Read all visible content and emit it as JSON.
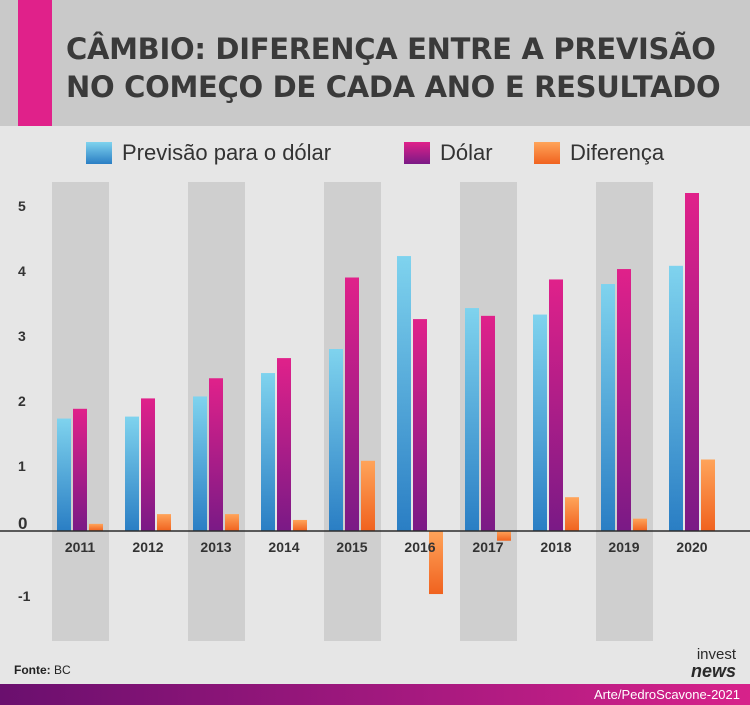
{
  "title_lines": [
    "CÂMBIO: DIFERENÇA ENTRE A PREVISÃO",
    "NO COMEÇO DE CADA ANO E RESULTADO"
  ],
  "colors": {
    "accent": "#e0218a",
    "previsao": "#3aa0d9",
    "dolar": "#c7197f",
    "diferenca": "#f47a2c"
  },
  "chart_data": {
    "type": "bar",
    "categories": [
      "2011",
      "2012",
      "2013",
      "2014",
      "2015",
      "2016",
      "2017",
      "2018",
      "2019",
      "2020"
    ],
    "series": [
      {
        "name": "Previsão para o dólar",
        "values": [
          1.73,
          1.76,
          2.07,
          2.43,
          2.8,
          4.23,
          3.43,
          3.33,
          3.8,
          4.08
        ]
      },
      {
        "name": "Dólar",
        "values": [
          1.88,
          2.04,
          2.35,
          2.66,
          3.9,
          3.26,
          3.31,
          3.87,
          4.03,
          5.2
        ]
      },
      {
        "name": "Diferença",
        "values": [
          0.11,
          0.26,
          0.26,
          0.17,
          1.08,
          -0.97,
          -0.15,
          0.52,
          0.19,
          1.1
        ]
      }
    ],
    "y_ticks": [
      "-1",
      "0",
      "1",
      "2",
      "3",
      "4",
      "5"
    ],
    "ylim": [
      -1.7,
      5.5
    ],
    "xlabel": "",
    "ylabel": "",
    "grid": false,
    "legend_position": "top"
  },
  "footer": {
    "source_label": "Fonte:",
    "source_value": "BC",
    "logo_top": "invest",
    "logo_bottom": "news",
    "credit": "Arte/PedroScavone-2021"
  }
}
